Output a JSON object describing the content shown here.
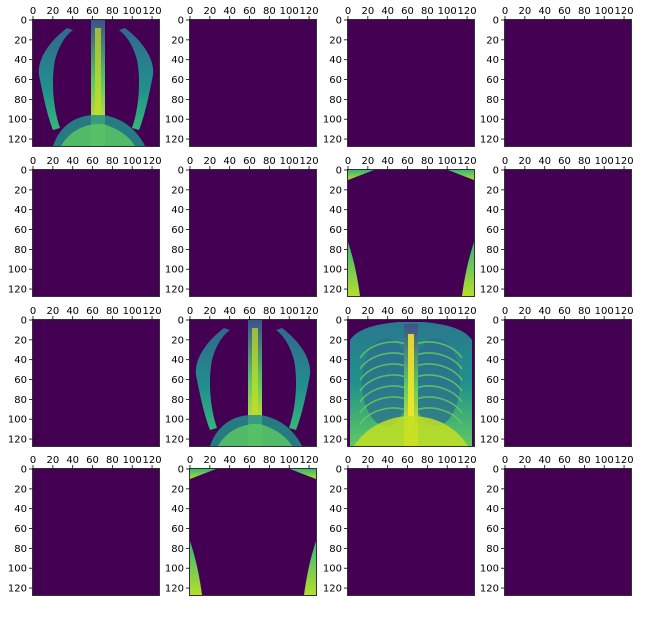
{
  "figure": {
    "grid": {
      "rows": 4,
      "cols": 4
    },
    "axis_tick_values": [
      0,
      20,
      40,
      60,
      80,
      100,
      120
    ],
    "axis_range": [
      0,
      127
    ],
    "colormap": {
      "background": "#440154",
      "mid": "#21918c",
      "high": "#fde725"
    }
  },
  "chart_data": {
    "type": "heatmap",
    "title": "",
    "xlabel": "",
    "ylabel": "",
    "xlim": [
      0,
      127
    ],
    "ylim": [
      127,
      0
    ],
    "grid": false,
    "panels": [
      {
        "index": 0,
        "content": "lung-edges"
      },
      {
        "index": 1,
        "content": "empty"
      },
      {
        "index": 2,
        "content": "empty"
      },
      {
        "index": 3,
        "content": "empty"
      },
      {
        "index": 4,
        "content": "empty"
      },
      {
        "index": 5,
        "content": "empty"
      },
      {
        "index": 6,
        "content": "corners"
      },
      {
        "index": 7,
        "content": "empty"
      },
      {
        "index": 8,
        "content": "empty"
      },
      {
        "index": 9,
        "content": "lung-edges"
      },
      {
        "index": 10,
        "content": "chest-xray"
      },
      {
        "index": 11,
        "content": "empty"
      },
      {
        "index": 12,
        "content": "empty"
      },
      {
        "index": 13,
        "content": "corners"
      },
      {
        "index": 14,
        "content": "empty"
      },
      {
        "index": 15,
        "content": "empty"
      }
    ]
  }
}
